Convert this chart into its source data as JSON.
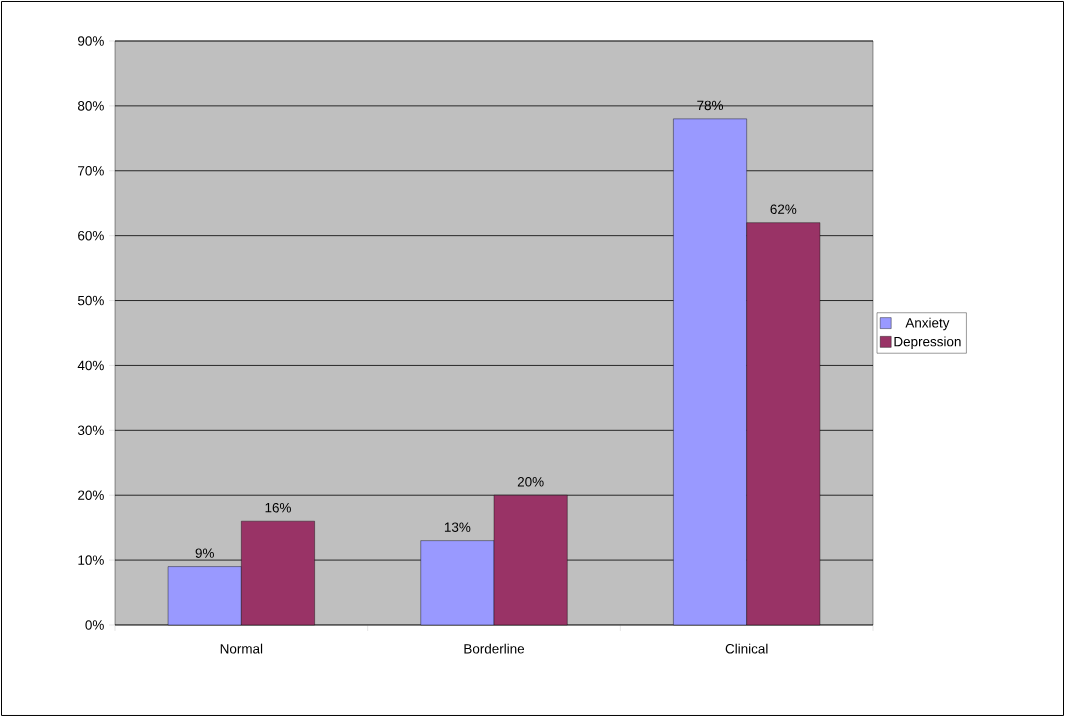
{
  "chart_data": {
    "type": "bar",
    "categories": [
      "Normal",
      "Borderline",
      "Clinical"
    ],
    "series": [
      {
        "name": "Anxiety",
        "color": "#9999ff",
        "values": [
          9,
          13,
          78
        ],
        "value_labels": [
          "9%",
          "13%",
          "78%"
        ]
      },
      {
        "name": "Depression",
        "color": "#993366",
        "values": [
          16,
          20,
          62
        ],
        "value_labels": [
          "16%",
          "20%",
          "62%"
        ]
      }
    ],
    "ylim": [
      0,
      90
    ],
    "yticks": [
      {
        "value": 0,
        "label": "0%"
      },
      {
        "value": 10,
        "label": "10%"
      },
      {
        "value": 20,
        "label": "20%"
      },
      {
        "value": 30,
        "label": "30%"
      },
      {
        "value": 40,
        "label": "40%"
      },
      {
        "value": 50,
        "label": "50%"
      },
      {
        "value": 60,
        "label": "60%"
      },
      {
        "value": 70,
        "label": "70%"
      },
      {
        "value": 80,
        "label": "80%"
      },
      {
        "value": 90,
        "label": "90%"
      }
    ],
    "grid": "y",
    "legend": "right"
  }
}
